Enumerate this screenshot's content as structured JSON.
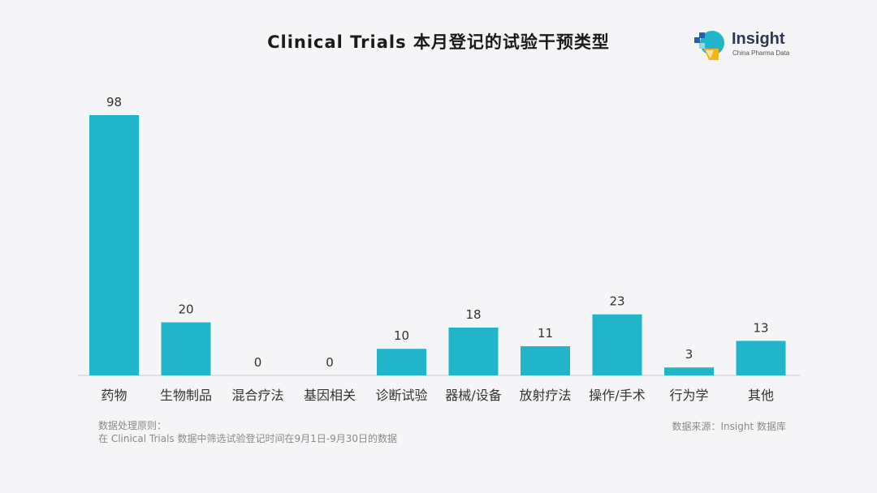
{
  "title": "Clinical Trials 本月登记的试验干预类型",
  "logo": {
    "name": "Insight",
    "sub": "China Pharma Data"
  },
  "colors": {
    "bar": "#20b5cb",
    "axis": "#cccccc",
    "label": "#333333"
  },
  "chart_data": {
    "type": "bar",
    "title": "Clinical Trials 本月登记的试验干预类型",
    "categories": [
      "药物",
      "生物制品",
      "混合疗法",
      "基因相关",
      "诊断试验",
      "器械/设备",
      "放射疗法",
      "操作/手术",
      "行为学",
      "其他"
    ],
    "values": [
      98,
      20,
      0,
      0,
      10,
      18,
      11,
      23,
      3,
      13
    ],
    "ylim": [
      0,
      98
    ],
    "xlabel": "",
    "ylabel": "",
    "grid": false,
    "data_labels": true
  },
  "footer": {
    "note_line1": "数据处理原则：",
    "note_line2": "在 Clinical Trials 数据中筛选试验登记时间在9月1日-9月30日的数据",
    "source": "数据来源：Insight  数据库"
  }
}
